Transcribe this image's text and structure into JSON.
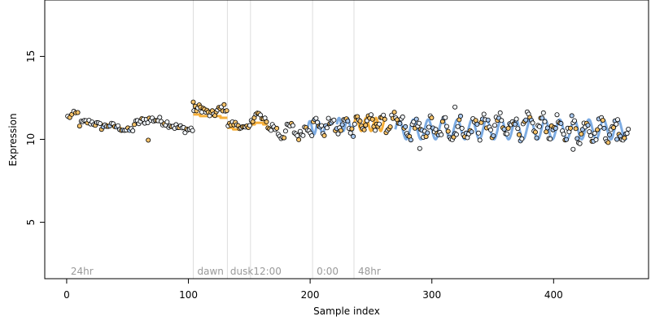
{
  "chart_data": {
    "type": "scatter",
    "title": "",
    "xlabel": "Sample index",
    "ylabel": "Expression",
    "xlim": [
      -18,
      478
    ],
    "ylim": [
      1.6,
      18.4
    ],
    "x_ticks": [
      0,
      100,
      200,
      300,
      400
    ],
    "y_ticks": [
      5,
      10,
      15
    ],
    "grid": false,
    "legend": "none",
    "phase_boundaries": [
      104,
      132,
      151,
      202,
      236
    ],
    "phase_labels": [
      {
        "text": "24hr",
        "x": 2
      },
      {
        "text": "dawn",
        "x": 106
      },
      {
        "text": "dusk",
        "x": 133
      },
      {
        "text": "12:00",
        "x": 152
      },
      {
        "text": "0:00",
        "x": 204
      },
      {
        "text": "48hr",
        "x": 238
      }
    ],
    "colors": {
      "orange": "#f5a623",
      "blue": "#6fa3e0",
      "point_light": "#f0f4f8",
      "point_orange": "#f7c36a",
      "point_blue": "#a9c8ee",
      "phase_line": "#dddddd"
    },
    "fit_segments": [
      {
        "color": "orange",
        "type": "steps",
        "x_start": 28,
        "x_end": 55,
        "values": [
          10.9,
          10.8,
          10.7,
          10.6,
          10.5
        ]
      },
      {
        "color": "orange",
        "type": "steps",
        "x_start": 104,
        "x_end": 132,
        "values": [
          11.5,
          11.4,
          11.4,
          11.4,
          11.3
        ]
      },
      {
        "color": "orange",
        "type": "steps",
        "x_start": 132,
        "x_end": 151,
        "values": [
          10.7,
          10.6,
          10.7,
          10.8
        ]
      },
      {
        "color": "orange",
        "type": "steps",
        "x_start": 151,
        "x_end": 165,
        "values": [
          10.9,
          11.0,
          11.0,
          10.9
        ]
      },
      {
        "color": "blue",
        "type": "wave",
        "x_start": 198,
        "x_end": 212,
        "base": 10.7,
        "amp": 0.4,
        "period": 7
      },
      {
        "color": "blue",
        "type": "wave",
        "x_start": 222,
        "x_end": 236,
        "base": 10.9,
        "amp": 0.4,
        "period": 7
      },
      {
        "color": "orange",
        "type": "wave",
        "x_start": 236,
        "x_end": 262,
        "base": 10.9,
        "amp": 0.4,
        "period": 8
      },
      {
        "color": "blue",
        "type": "wave",
        "x_start": 270,
        "x_end": 460,
        "base": 10.6,
        "amp": 0.6,
        "period": 12
      }
    ],
    "point_groups": [
      {
        "x_start": 0,
        "x_end": 10,
        "n": 6,
        "base": 11.3,
        "amp": 0.25,
        "noise": 0.2,
        "period": 40,
        "color": "orange"
      },
      {
        "x_start": 10,
        "x_end": 28,
        "n": 14,
        "base": 10.9,
        "amp": 0.15,
        "noise": 0.18,
        "period": 30,
        "color": "light"
      },
      {
        "x_start": 28,
        "x_end": 55,
        "n": 20,
        "base": 10.7,
        "amp": 0.15,
        "noise": 0.15,
        "period": 30,
        "color": "mixed"
      },
      {
        "x_start": 55,
        "x_end": 104,
        "n": 40,
        "base": 10.9,
        "amp": 0.3,
        "noise": 0.22,
        "period": 60,
        "color": "light"
      },
      {
        "x_start": 104,
        "x_end": 132,
        "n": 26,
        "base": 11.7,
        "amp": 0.2,
        "noise": 0.22,
        "period": 20,
        "color": "orange"
      },
      {
        "x_start": 132,
        "x_end": 151,
        "n": 16,
        "base": 10.8,
        "amp": 0.15,
        "noise": 0.15,
        "period": 20,
        "color": "orange"
      },
      {
        "x_start": 151,
        "x_end": 166,
        "n": 12,
        "base": 11.2,
        "amp": 0.3,
        "noise": 0.3,
        "period": 20,
        "color": "orange"
      },
      {
        "x_start": 166,
        "x_end": 202,
        "n": 30,
        "base": 10.5,
        "amp": 0.3,
        "noise": 0.3,
        "period": 14,
        "color": "light"
      },
      {
        "x_start": 202,
        "x_end": 236,
        "n": 30,
        "base": 10.8,
        "amp": 0.35,
        "noise": 0.3,
        "period": 12,
        "color": "mixed"
      },
      {
        "x_start": 236,
        "x_end": 272,
        "n": 32,
        "base": 11.0,
        "amp": 0.4,
        "noise": 0.3,
        "period": 10,
        "color": "orange"
      },
      {
        "x_start": 272,
        "x_end": 340,
        "n": 60,
        "base": 10.6,
        "amp": 0.5,
        "noise": 0.4,
        "period": 12,
        "color": "mixed"
      },
      {
        "x_start": 340,
        "x_end": 400,
        "n": 54,
        "base": 10.8,
        "amp": 0.5,
        "noise": 0.4,
        "period": 12,
        "color": "mixed"
      },
      {
        "x_start": 400,
        "x_end": 462,
        "n": 56,
        "base": 10.6,
        "amp": 0.55,
        "noise": 0.4,
        "period": 12,
        "color": "mixed"
      }
    ],
    "extra_points": [
      {
        "x": 67,
        "y": 9.95,
        "color": "light"
      },
      {
        "x": 104,
        "y": 12.25,
        "color": "orange"
      },
      {
        "x": 290,
        "y": 9.45,
        "color": "light"
      },
      {
        "x": 319,
        "y": 11.95,
        "color": "orange"
      },
      {
        "x": 416,
        "y": 9.4,
        "color": "light"
      },
      {
        "x": 452,
        "y": 10.0,
        "color": "blue"
      }
    ]
  }
}
